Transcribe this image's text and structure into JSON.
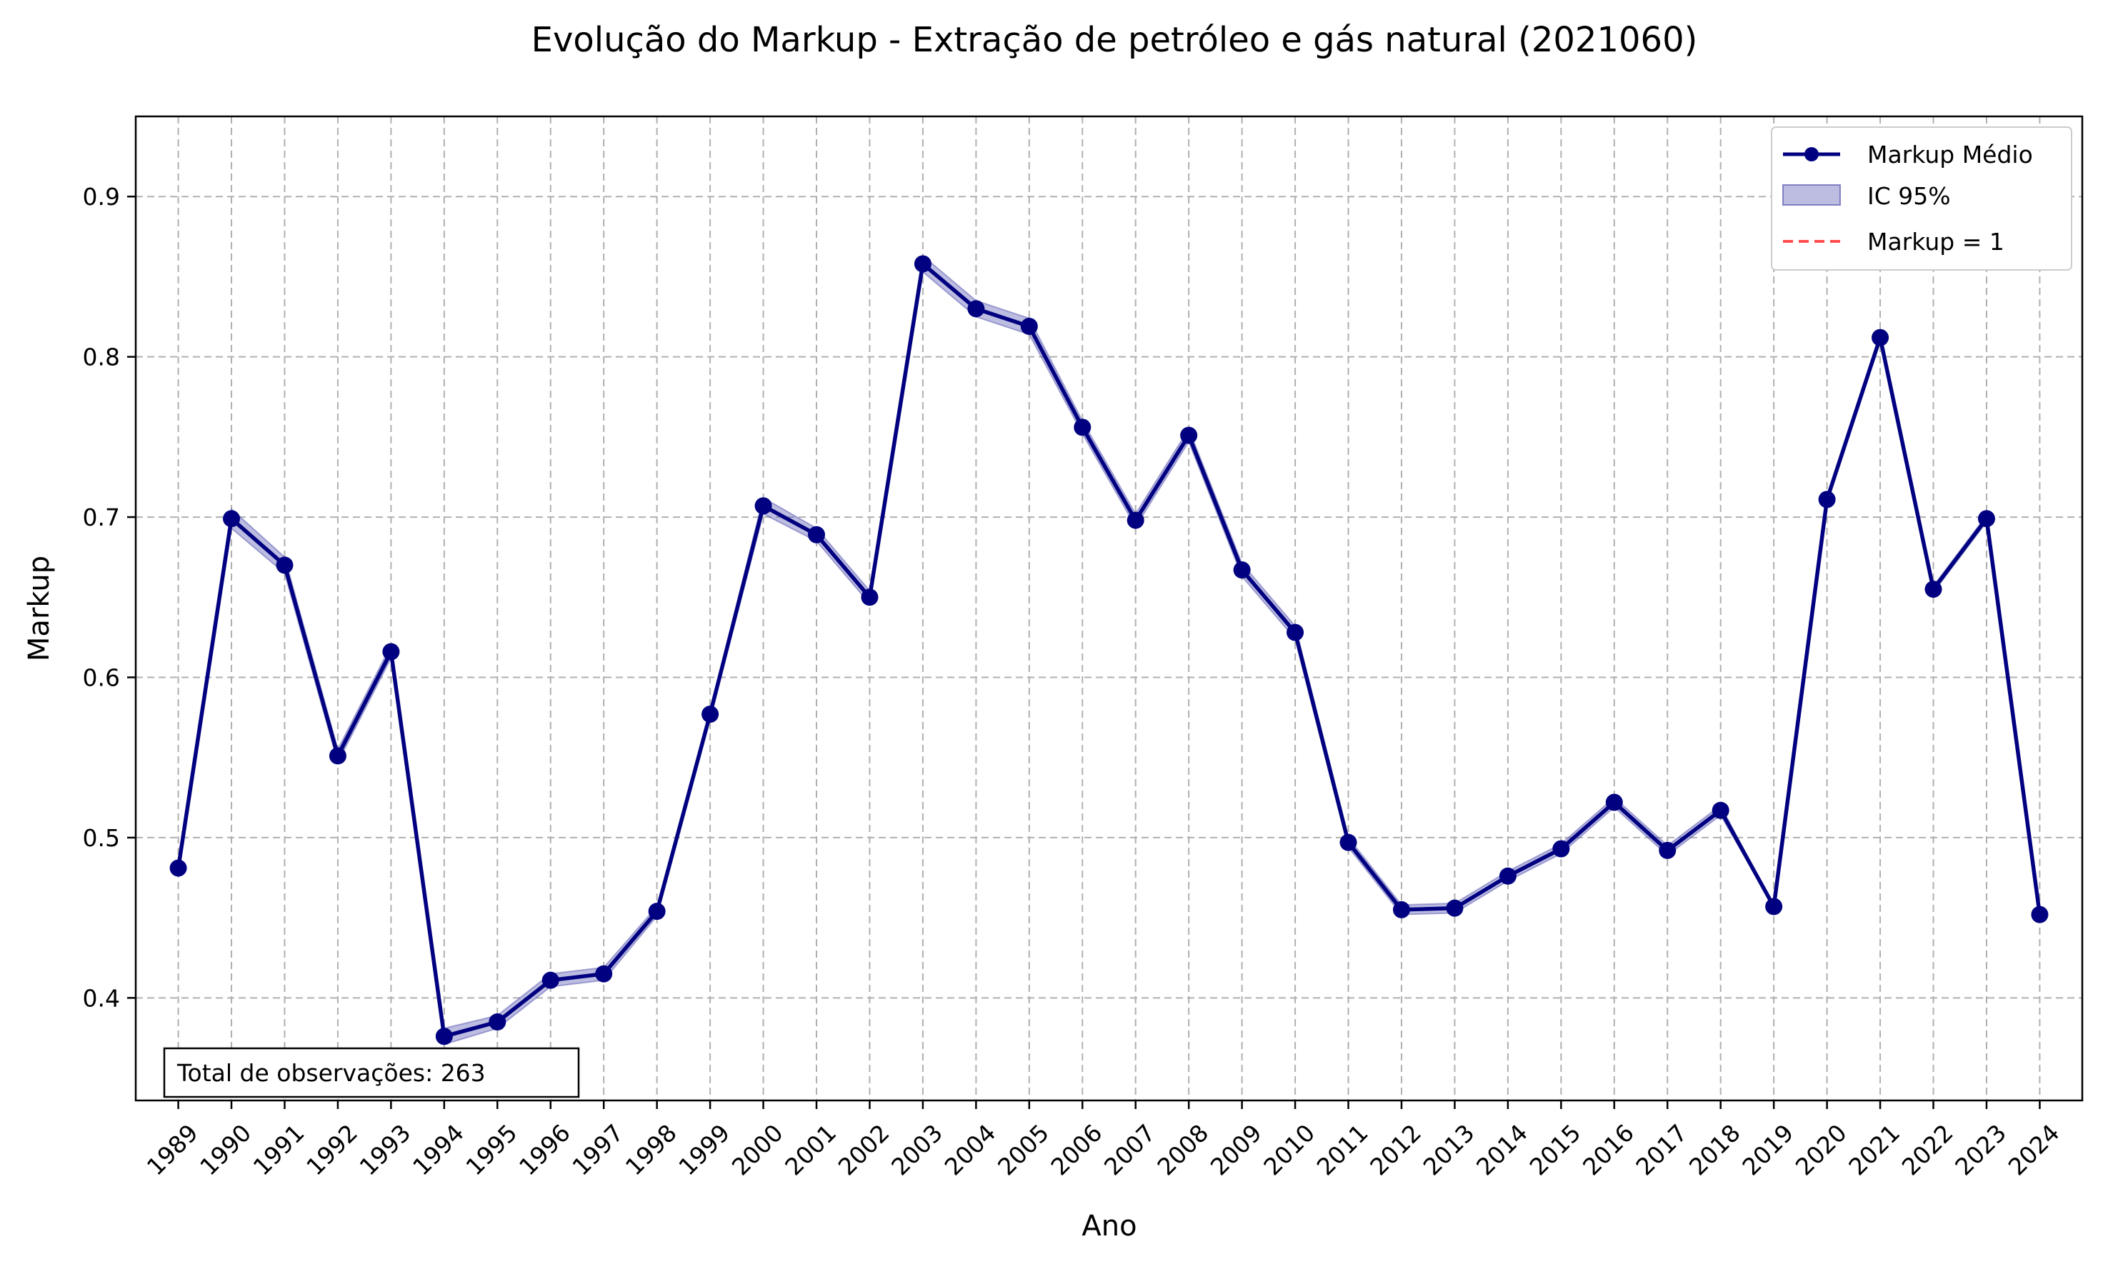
{
  "chart_data": {
    "type": "line",
    "title": "Evolução do Markup - Extração de petróleo e gás natural (2021060)",
    "xlabel": "Ano",
    "ylabel": "Markup",
    "x": [
      1989,
      1990,
      1991,
      1992,
      1993,
      1994,
      1995,
      1996,
      1997,
      1998,
      1999,
      2000,
      2001,
      2002,
      2003,
      2004,
      2005,
      2006,
      2007,
      2008,
      2009,
      2010,
      2011,
      2012,
      2013,
      2014,
      2015,
      2016,
      2017,
      2018,
      2019,
      2020,
      2021,
      2022,
      2023,
      2024
    ],
    "series": [
      {
        "name": "Markup Médio",
        "color": "#000080",
        "values": [
          0.481,
          0.699,
          0.67,
          0.551,
          0.616,
          0.376,
          0.385,
          0.411,
          0.415,
          0.454,
          0.577,
          0.707,
          0.689,
          0.65,
          0.858,
          0.83,
          0.819,
          0.756,
          0.698,
          0.751,
          0.667,
          0.628,
          0.497,
          0.455,
          0.456,
          0.476,
          0.493,
          0.522,
          0.492,
          0.517,
          0.457,
          0.711,
          0.812,
          0.655,
          0.699,
          0.452
        ],
        "ci_lower": [
          0.481,
          0.693,
          0.665,
          0.547,
          0.612,
          0.371,
          0.381,
          0.407,
          0.411,
          0.451,
          0.575,
          0.702,
          0.685,
          0.646,
          0.853,
          0.825,
          0.814,
          0.752,
          0.694,
          0.747,
          0.663,
          0.624,
          0.494,
          0.452,
          0.453,
          0.473,
          0.49,
          0.519,
          0.489,
          0.514,
          0.457,
          0.711,
          0.812,
          0.653,
          0.697,
          0.452
        ],
        "ci_upper": [
          0.481,
          0.705,
          0.675,
          0.555,
          0.62,
          0.381,
          0.389,
          0.415,
          0.419,
          0.457,
          0.579,
          0.712,
          0.693,
          0.654,
          0.863,
          0.835,
          0.824,
          0.76,
          0.702,
          0.755,
          0.671,
          0.632,
          0.5,
          0.458,
          0.459,
          0.479,
          0.496,
          0.525,
          0.495,
          0.52,
          0.457,
          0.711,
          0.812,
          0.657,
          0.701,
          0.452
        ]
      }
    ],
    "ci_label": "IC 95%",
    "ci_color": "#5a5ab4",
    "reference_line": {
      "label": "Markup = 1",
      "value": 1.0,
      "color": "#ff4d4d"
    },
    "xlim": [
      1988.2,
      2024.8
    ],
    "ylim": [
      0.336,
      0.95
    ],
    "yticks": [
      "0.4",
      "0.5",
      "0.6",
      "0.7",
      "0.8",
      "0.9"
    ],
    "grid": true,
    "legend_position": "top-right"
  },
  "annotation": {
    "text": "Total de observações: 263"
  }
}
